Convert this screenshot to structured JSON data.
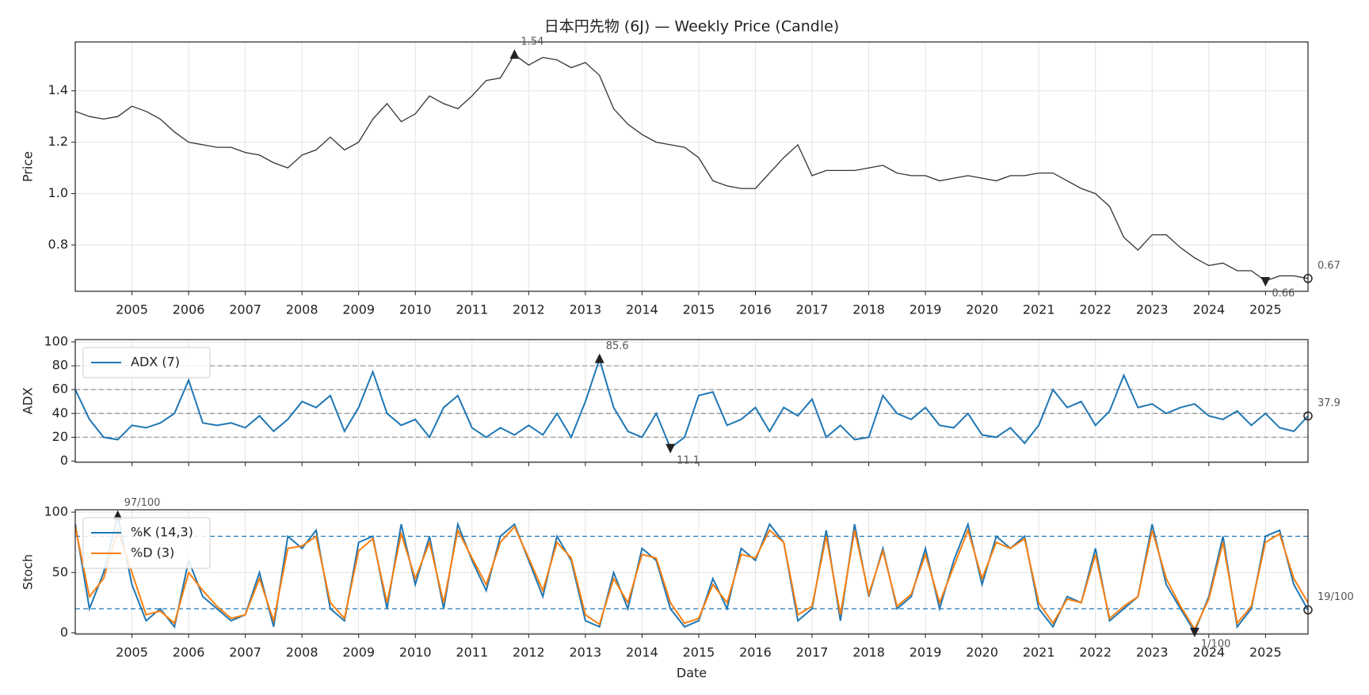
{
  "chart_data": [
    {
      "type": "line",
      "title": "日本円先物 (6J) — Weekly Price (Candle)",
      "ylabel": "Price",
      "x": [
        2004,
        2004.25,
        2004.5,
        2004.75,
        2005,
        2005.25,
        2005.5,
        2005.75,
        2006,
        2006.25,
        2006.5,
        2006.75,
        2007,
        2007.25,
        2007.5,
        2007.75,
        2008,
        2008.25,
        2008.5,
        2008.75,
        2009,
        2009.25,
        2009.5,
        2009.75,
        2010,
        2010.25,
        2010.5,
        2010.75,
        2011,
        2011.25,
        2011.5,
        2011.75,
        2012,
        2012.25,
        2012.5,
        2012.75,
        2013,
        2013.25,
        2013.5,
        2013.75,
        2014,
        2014.25,
        2014.5,
        2014.75,
        2015,
        2015.25,
        2015.5,
        2015.75,
        2016,
        2016.25,
        2016.5,
        2016.75,
        2017,
        2017.25,
        2017.5,
        2017.75,
        2018,
        2018.25,
        2018.5,
        2018.75,
        2019,
        2019.25,
        2019.5,
        2019.75,
        2020,
        2020.25,
        2020.5,
        2020.75,
        2021,
        2021.25,
        2021.5,
        2021.75,
        2022,
        2022.25,
        2022.5,
        2022.75,
        2023,
        2023.25,
        2023.5,
        2023.75,
        2024,
        2024.25,
        2024.5,
        2024.75,
        2025,
        2025.25,
        2025.5,
        2025.75
      ],
      "series": [
        {
          "color": "#333333",
          "values": [
            1.32,
            1.3,
            1.29,
            1.3,
            1.34,
            1.32,
            1.29,
            1.24,
            1.2,
            1.19,
            1.18,
            1.18,
            1.16,
            1.15,
            1.12,
            1.1,
            1.15,
            1.17,
            1.22,
            1.17,
            1.2,
            1.29,
            1.35,
            1.28,
            1.31,
            1.38,
            1.35,
            1.33,
            1.38,
            1.44,
            1.45,
            1.54,
            1.5,
            1.53,
            1.52,
            1.49,
            1.51,
            1.46,
            1.33,
            1.27,
            1.23,
            1.2,
            1.19,
            1.18,
            1.14,
            1.05,
            1.03,
            1.02,
            1.02,
            1.08,
            1.14,
            1.19,
            1.07,
            1.09,
            1.09,
            1.09,
            1.1,
            1.11,
            1.08,
            1.07,
            1.07,
            1.05,
            1.06,
            1.07,
            1.06,
            1.05,
            1.07,
            1.07,
            1.08,
            1.08,
            1.05,
            1.02,
            1.0,
            0.95,
            0.83,
            0.78,
            0.84,
            0.84,
            0.79,
            0.75,
            0.72,
            0.73,
            0.7,
            0.7,
            0.66,
            0.68,
            0.68,
            0.67
          ]
        }
      ],
      "xlim": [
        2004,
        2025.75
      ],
      "xticks": [
        2005,
        2006,
        2007,
        2008,
        2009,
        2010,
        2011,
        2012,
        2013,
        2014,
        2015,
        2016,
        2017,
        2018,
        2019,
        2020,
        2021,
        2022,
        2023,
        2024,
        2025
      ],
      "ylim": [
        0.62,
        1.59
      ],
      "yticks": [
        0.8,
        {
          "value": 1,
          "label": "1.0"
        },
        1.2,
        1.4
      ],
      "grid": true,
      "annotations": [
        {
          "x": 2011.75,
          "value": 1.54,
          "kind": "max"
        },
        {
          "x": 2025,
          "value": 0.66,
          "kind": "min"
        },
        {
          "x": 2025.75,
          "value": 0.67,
          "kind": "last"
        }
      ]
    },
    {
      "type": "line",
      "ylabel": "ADX",
      "legend": "upper left",
      "x": [
        2004,
        2004.25,
        2004.5,
        2004.75,
        2005,
        2005.25,
        2005.5,
        2005.75,
        2006,
        2006.25,
        2006.5,
        2006.75,
        2007,
        2007.25,
        2007.5,
        2007.75,
        2008,
        2008.25,
        2008.5,
        2008.75,
        2009,
        2009.25,
        2009.5,
        2009.75,
        2010,
        2010.25,
        2010.5,
        2010.75,
        2011,
        2011.25,
        2011.5,
        2011.75,
        2012,
        2012.25,
        2012.5,
        2012.75,
        2013,
        2013.25,
        2013.5,
        2013.75,
        2014,
        2014.25,
        2014.5,
        2014.75,
        2015,
        2015.25,
        2015.5,
        2015.75,
        2016,
        2016.25,
        2016.5,
        2016.75,
        2017,
        2017.25,
        2017.5,
        2017.75,
        2018,
        2018.25,
        2018.5,
        2018.75,
        2019,
        2019.25,
        2019.5,
        2019.75,
        2020,
        2020.25,
        2020.5,
        2020.75,
        2021,
        2021.25,
        2021.5,
        2021.75,
        2022,
        2022.25,
        2022.5,
        2022.75,
        2023,
        2023.25,
        2023.5,
        2023.75,
        2024,
        2024.25,
        2024.5,
        2024.75,
        2025,
        2025.25,
        2025.5,
        2025.75
      ],
      "series": [
        {
          "name": "ADX (7)",
          "color": "#1f77b4",
          "values": [
            60,
            35,
            20,
            18,
            30,
            28,
            32,
            40,
            68,
            32,
            30,
            32,
            28,
            38,
            25,
            35,
            50,
            45,
            55,
            25,
            45,
            75,
            40,
            30,
            35,
            20,
            45,
            55,
            28,
            20,
            28,
            22,
            30,
            22,
            40,
            20,
            50,
            85.6,
            45,
            25,
            20,
            40,
            11.1,
            20,
            55,
            58,
            30,
            35,
            45,
            25,
            45,
            38,
            52,
            20,
            30,
            18,
            20,
            55,
            40,
            35,
            45,
            30,
            28,
            40,
            22,
            20,
            28,
            15,
            30,
            60,
            45,
            50,
            30,
            42,
            72,
            45,
            48,
            40,
            45,
            48,
            38,
            35,
            42,
            30,
            40,
            28,
            25,
            37.9
          ]
        }
      ],
      "xlim": [
        2004,
        2025.75
      ],
      "xticks": [
        2005,
        2006,
        2007,
        2008,
        2009,
        2010,
        2011,
        2012,
        2013,
        2014,
        2015,
        2016,
        2017,
        2018,
        2019,
        2020,
        2021,
        2022,
        2023,
        2024,
        2025
      ],
      "ylim": [
        -1,
        102
      ],
      "yticks": [
        0,
        20,
        40,
        60,
        80,
        100
      ],
      "grid": true,
      "hlines": [
        20,
        40,
        60,
        80
      ],
      "hline_color": "#999999",
      "annotations": [
        {
          "x": 2013.25,
          "value": 85.6,
          "kind": "max"
        },
        {
          "x": 2014.5,
          "value": 11.1,
          "kind": "min"
        },
        {
          "x": 2025.75,
          "value": 37.9,
          "kind": "last"
        }
      ]
    },
    {
      "type": "line",
      "ylabel": "Stoch",
      "xlabel": "Date",
      "legend": "upper left",
      "x": [
        2004,
        2004.25,
        2004.5,
        2004.75,
        2005,
        2005.25,
        2005.5,
        2005.75,
        2006,
        2006.25,
        2006.5,
        2006.75,
        2007,
        2007.25,
        2007.5,
        2007.75,
        2008,
        2008.25,
        2008.5,
        2008.75,
        2009,
        2009.25,
        2009.5,
        2009.75,
        2010,
        2010.25,
        2010.5,
        2010.75,
        2011,
        2011.25,
        2011.5,
        2011.75,
        2012,
        2012.25,
        2012.5,
        2012.75,
        2013,
        2013.25,
        2013.5,
        2013.75,
        2014,
        2014.25,
        2014.5,
        2014.75,
        2015,
        2015.25,
        2015.5,
        2015.75,
        2016,
        2016.25,
        2016.5,
        2016.75,
        2017,
        2017.25,
        2017.5,
        2017.75,
        2018,
        2018.25,
        2018.5,
        2018.75,
        2019,
        2019.25,
        2019.5,
        2019.75,
        2020,
        2020.25,
        2020.5,
        2020.75,
        2021,
        2021.25,
        2021.5,
        2021.75,
        2022,
        2022.25,
        2022.5,
        2022.75,
        2023,
        2023.25,
        2023.5,
        2023.75,
        2024,
        2024.25,
        2024.5,
        2024.75,
        2025,
        2025.25,
        2025.5,
        2025.75
      ],
      "series": [
        {
          "name": "%K (14,3)",
          "color": "#1f77b4",
          "values": [
            90,
            20,
            50,
            97,
            40,
            10,
            20,
            5,
            60,
            30,
            20,
            10,
            15,
            50,
            5,
            80,
            70,
            85,
            20,
            10,
            75,
            80,
            20,
            90,
            40,
            80,
            20,
            90,
            60,
            35,
            80,
            90,
            60,
            30,
            80,
            60,
            10,
            5,
            50,
            20,
            70,
            60,
            20,
            5,
            10,
            45,
            20,
            70,
            60,
            90,
            75,
            10,
            20,
            85,
            10,
            90,
            30,
            70,
            20,
            30,
            70,
            20,
            60,
            90,
            40,
            80,
            70,
            80,
            20,
            5,
            30,
            25,
            70,
            10,
            20,
            30,
            90,
            40,
            20,
            1,
            30,
            80,
            5,
            20,
            80,
            85,
            40,
            19
          ]
        },
        {
          "name": "%D (3)",
          "color": "#ff7f0e",
          "values": [
            88,
            30,
            45,
            85,
            50,
            15,
            18,
            8,
            50,
            35,
            22,
            12,
            15,
            45,
            10,
            70,
            72,
            80,
            25,
            12,
            68,
            78,
            25,
            82,
            45,
            75,
            25,
            85,
            62,
            40,
            75,
            88,
            62,
            35,
            75,
            62,
            15,
            7,
            45,
            25,
            65,
            62,
            25,
            8,
            12,
            40,
            25,
            65,
            62,
            85,
            75,
            15,
            22,
            80,
            15,
            85,
            32,
            68,
            22,
            32,
            65,
            25,
            55,
            85,
            45,
            75,
            70,
            78,
            25,
            8,
            28,
            25,
            65,
            12,
            22,
            30,
            85,
            45,
            22,
            3,
            28,
            75,
            8,
            22,
            75,
            82,
            45,
            25
          ]
        }
      ],
      "xlim": [
        2004,
        2025.75
      ],
      "xticks": [
        2005,
        2006,
        2007,
        2008,
        2009,
        2010,
        2011,
        2012,
        2013,
        2014,
        2015,
        2016,
        2017,
        2018,
        2019,
        2020,
        2021,
        2022,
        2023,
        2024,
        2025
      ],
      "ylim": [
        -1,
        102
      ],
      "yticks": [
        0,
        50,
        100
      ],
      "grid": true,
      "hlines": [
        20,
        80
      ],
      "hline_color": "#1f77b4",
      "annotations": [
        {
          "x": 2004.75,
          "value": 97,
          "label": "97/100",
          "kind": "max"
        },
        {
          "x": 2023.75,
          "value": 1,
          "label": "1/100",
          "kind": "min"
        },
        {
          "x": 2025.75,
          "value": 19,
          "label": "19/100",
          "kind": "last"
        }
      ]
    }
  ]
}
